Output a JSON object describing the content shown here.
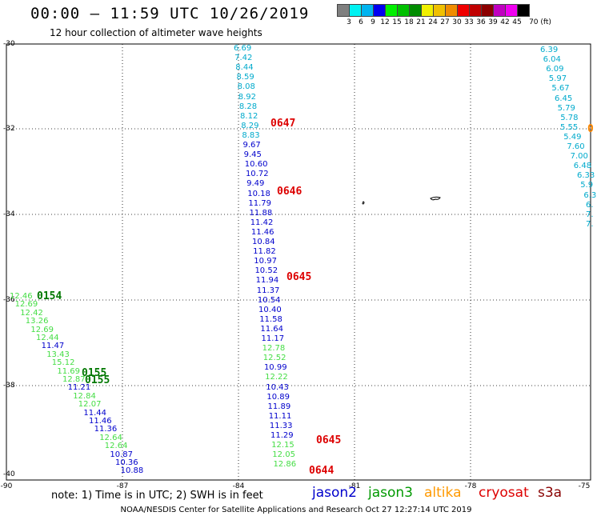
{
  "header": {
    "title": "00:00 – 11:59 UTC 10/26/2019",
    "subtitle": "12 hour collection of altimeter wave heights"
  },
  "scale": {
    "colors": [
      "#7f7f7f",
      "#00f2f2",
      "#00b4f0",
      "#0000f0",
      "#00f000",
      "#00c000",
      "#008c00",
      "#f0f000",
      "#f0c000",
      "#f08c00",
      "#f00000",
      "#c00000",
      "#8c0000",
      "#c000c0",
      "#f000f0",
      "#000000"
    ],
    "labels": [
      "3",
      "6",
      "9",
      "12",
      "15",
      "18",
      "21",
      "24",
      "27",
      "30",
      "33",
      "36",
      "39",
      "42",
      "45",
      "70 (ft)"
    ]
  },
  "axes": {
    "lat_labels": [
      "-30",
      "-32",
      "-34",
      "-36",
      "-38",
      "-40"
    ],
    "lon_labels": [
      "-90",
      "-87",
      "-84",
      "-81",
      "-78",
      "-75"
    ]
  },
  "footer": {
    "notes": "note: 1) Time is in UTC; 2) SWH is in feet",
    "credit": "NOAA/NESDIS Center for Satellite Applications and Research    Oct 27 12:27:14 UTC 2019"
  },
  "legend": [
    {
      "name": "jason2",
      "color": "#0000cc"
    },
    {
      "name": "jason3",
      "color": "#009900"
    },
    {
      "name": "altika",
      "color": "#ff9900"
    },
    {
      "name": "cryosat",
      "color": "#dd0000"
    },
    {
      "name": "s3a",
      "color": "#880000"
    }
  ],
  "tracks": {
    "middle": {
      "values": [
        "6.69",
        "7.42",
        "8.44",
        "8.59",
        "8.08",
        "8.92",
        "8.28",
        "8.12",
        "8.29",
        "8.83",
        "9.67",
        "9.45",
        "10.60",
        "10.72",
        "9.49",
        "10.18",
        "11.79",
        "11.88",
        "11.42",
        "11.46",
        "10.84",
        "11.82",
        "10.97",
        "10.52",
        "11.94",
        "11.37",
        "10.54",
        "10.40",
        "11.58",
        "11.64",
        "11.17",
        "12.78",
        "12.52",
        "10.99",
        "12.22",
        "10.43",
        "10.89",
        "11.89",
        "11.11",
        "11.33",
        "11.29",
        "12.15",
        "12.05",
        "12.86"
      ],
      "colors": [
        "c",
        "c",
        "c",
        "c",
        "c",
        "c",
        "c",
        "c",
        "c",
        "c",
        "b",
        "b",
        "b",
        "b",
        "b",
        "b",
        "b",
        "b",
        "b",
        "b",
        "b",
        "b",
        "b",
        "b",
        "b",
        "b",
        "b",
        "b",
        "b",
        "b",
        "b",
        "g",
        "g",
        "b",
        "g",
        "b",
        "b",
        "b",
        "b",
        "b",
        "b",
        "g",
        "g",
        "g"
      ],
      "times": [
        {
          "t": "0647",
          "idx": 9
        },
        {
          "t": "0646",
          "idx": 16
        },
        {
          "t": "0645",
          "idx": 26
        },
        {
          "t": "0645",
          "idx": 41
        },
        {
          "t": "0644",
          "idx": 44
        }
      ]
    },
    "east": {
      "values": [
        "6.39",
        "6.04",
        "6.09",
        "5.97",
        "5.67",
        "6.45",
        "5.79",
        "5.78",
        "5.55",
        "5.49",
        "7.60",
        "7.00",
        "6.48",
        "6.33",
        "5.9",
        "6.3",
        "6.",
        "7.",
        "7."
      ],
      "time": "0"
    },
    "west": {
      "values": [
        "12.46",
        "12.69",
        "12.42",
        "13.26",
        "12.69",
        "12.44",
        "11.47",
        "13.43",
        "15.12",
        "11.69",
        "12.87",
        "11.21",
        "12.84",
        "12.07",
        "11.44",
        "11.46",
        "11.36",
        "12.64",
        "12.64",
        "10.87",
        "10.36",
        "10.88"
      ],
      "colors": [
        "g",
        "g",
        "g",
        "g",
        "g",
        "g",
        "b",
        "g",
        "g",
        "g",
        "g",
        "b",
        "g",
        "g",
        "b",
        "b",
        "b",
        "g",
        "g",
        "b",
        "b",
        "b"
      ],
      "times": [
        {
          "t": "0154"
        },
        {
          "t": "0155"
        }
      ]
    }
  },
  "colormap": {
    "c": "#00aacc",
    "b": "#0000cc",
    "g": "#44dd44",
    "time": "#dd0000",
    "time_green": "#007700",
    "time_orange": "#ff8800"
  }
}
